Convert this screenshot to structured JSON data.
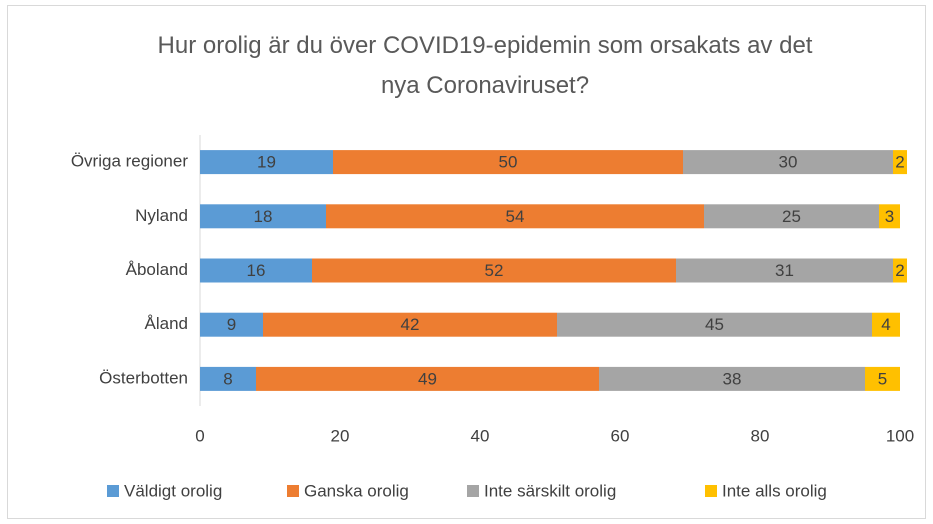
{
  "chart_data": {
    "type": "stacked-bar-horizontal",
    "title": "Hur orolig är du över COVID19-epidemin som orsakats av det nya Coronaviruset?",
    "categories": [
      "Övriga regioner",
      "Nyland",
      "Åboland",
      "Åland",
      "Österbotten"
    ],
    "series": [
      {
        "name": "Väldigt orolig",
        "color": "#5b9bd5",
        "values": [
          19,
          18,
          16,
          9,
          8
        ]
      },
      {
        "name": "Ganska orolig",
        "color": "#ed7d31",
        "values": [
          50,
          54,
          52,
          42,
          49
        ]
      },
      {
        "name": "Inte särskilt orolig",
        "color": "#a5a5a5",
        "values": [
          30,
          25,
          31,
          45,
          38
        ]
      },
      {
        "name": "Inte alls orolig",
        "color": "#ffc000",
        "values": [
          2,
          3,
          2,
          4,
          5
        ]
      }
    ],
    "xlim": [
      0,
      100
    ],
    "xticks": [
      0,
      20,
      40,
      60,
      80,
      100
    ],
    "grid": false,
    "legend": "bottom"
  }
}
